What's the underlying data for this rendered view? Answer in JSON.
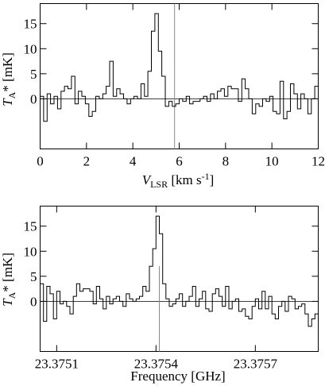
{
  "chart_data": [
    {
      "type": "line",
      "step": true,
      "xlabel_main": "V",
      "xlabel_sub": "LSR",
      "xlabel_unit": " [km s",
      "xlabel_exp": "-1",
      "xlabel_close": "]",
      "ylabel_main": "T",
      "ylabel_sub": "A",
      "ylabel_rest": "* [mK]",
      "xlim": [
        0,
        12
      ],
      "ylim": [
        -10,
        19
      ],
      "xticks": [
        0,
        2,
        4,
        6,
        8,
        10,
        12
      ],
      "yticks": [
        0,
        5,
        10,
        15
      ],
      "vline": 5.8,
      "x": [
        0.0,
        0.15,
        0.3,
        0.45,
        0.6,
        0.75,
        0.9,
        1.05,
        1.2,
        1.35,
        1.5,
        1.65,
        1.8,
        1.95,
        2.1,
        2.25,
        2.4,
        2.55,
        2.7,
        2.85,
        3.0,
        3.15,
        3.3,
        3.45,
        3.6,
        3.75,
        3.9,
        4.05,
        4.2,
        4.35,
        4.5,
        4.65,
        4.8,
        4.95,
        5.1,
        5.25,
        5.4,
        5.55,
        5.7,
        5.85,
        6.0,
        6.15,
        6.3,
        6.45,
        6.6,
        6.75,
        6.9,
        7.05,
        7.2,
        7.35,
        7.5,
        7.65,
        7.8,
        7.95,
        8.1,
        8.25,
        8.4,
        8.55,
        8.7,
        8.85,
        9.0,
        9.15,
        9.3,
        9.45,
        9.6,
        9.75,
        9.9,
        10.05,
        10.2,
        10.35,
        10.5,
        10.65,
        10.8,
        10.95,
        11.1,
        11.25,
        11.4,
        11.55,
        11.7,
        11.85
      ],
      "values": [
        0.5,
        -4.5,
        1.0,
        -1.0,
        0.5,
        -2.0,
        1.5,
        2.5,
        2.0,
        4.5,
        -1.0,
        1.5,
        0.5,
        -1.0,
        -3.5,
        -2.5,
        0.5,
        0.0,
        1.0,
        2.5,
        7.5,
        0.5,
        2.0,
        1.0,
        0.0,
        -1.0,
        0.0,
        0.5,
        0.0,
        3.0,
        0.5,
        5.5,
        13.5,
        17.0,
        9.5,
        4.5,
        -1.5,
        -0.5,
        -1.5,
        -1.0,
        0.0,
        -0.5,
        0.5,
        -1.0,
        -0.5,
        -0.5,
        0.0,
        0.5,
        -0.5,
        1.0,
        0.0,
        1.5,
        2.0,
        0.5,
        2.5,
        2.0,
        2.0,
        -0.5,
        4.0,
        2.0,
        0.0,
        -3.0,
        -1.0,
        -1.5,
        0.0,
        -0.5,
        0.5,
        -2.5,
        -3.0,
        3.5,
        -4.0,
        -2.5,
        3.0,
        1.0,
        -2.0,
        1.0,
        0.0,
        -3.0,
        0.0,
        2.5
      ]
    },
    {
      "type": "line",
      "step": true,
      "xlabel": "Frequency [GHz]",
      "ylabel_main": "T",
      "ylabel_sub": "A",
      "ylabel_rest": "* [mK]",
      "xlim": [
        23.37505,
        23.37589
      ],
      "ylim": [
        -10,
        19
      ],
      "xticks": [
        23.3751,
        23.3754,
        23.3757
      ],
      "xtick_labels": [
        "23.3751",
        "23.3754",
        "23.3757"
      ],
      "yticks": [
        0,
        5,
        10,
        15
      ],
      "vline": 23.37541,
      "vline_top": 7,
      "x": [
        23.37505,
        23.37506,
        23.37507,
        23.37508,
        23.37509,
        23.3751,
        23.37511,
        23.37512,
        23.37513,
        23.37514,
        23.37515,
        23.37516,
        23.37517,
        23.37518,
        23.37519,
        23.3752,
        23.37521,
        23.37522,
        23.37523,
        23.37524,
        23.37525,
        23.37526,
        23.37527,
        23.37528,
        23.37529,
        23.3753,
        23.37531,
        23.37532,
        23.37533,
        23.37534,
        23.37535,
        23.37536,
        23.37537,
        23.37538,
        23.37539,
        23.3754,
        23.37541,
        23.37542,
        23.37543,
        23.37544,
        23.37545,
        23.37546,
        23.37547,
        23.37548,
        23.37549,
        23.3755,
        23.37551,
        23.37552,
        23.37553,
        23.37554,
        23.37555,
        23.37556,
        23.37557,
        23.37558,
        23.37559,
        23.3756,
        23.37561,
        23.37562,
        23.37563,
        23.37564,
        23.37565,
        23.37566,
        23.37567,
        23.37568,
        23.37569,
        23.3757,
        23.37571,
        23.37572,
        23.37573,
        23.37574,
        23.37575,
        23.37576,
        23.37577,
        23.37578,
        23.37579,
        23.3758,
        23.37581,
        23.37582,
        23.37583,
        23.37584,
        23.37585,
        23.37586,
        23.37587,
        23.37588
      ],
      "values": [
        3.5,
        -4.0,
        3.0,
        1.5,
        -3.5,
        2.0,
        -0.5,
        0.0,
        -1.0,
        -2.5,
        1.0,
        3.5,
        2.0,
        2.5,
        2.5,
        2.0,
        -0.5,
        3.0,
        0.5,
        -1.5,
        1.0,
        -0.5,
        0.5,
        1.0,
        0.0,
        -1.0,
        1.5,
        0.5,
        0.0,
        0.5,
        1.0,
        3.0,
        2.0,
        7.0,
        10.5,
        17.0,
        13.5,
        3.5,
        0.5,
        -1.0,
        -0.5,
        0.5,
        1.5,
        -1.0,
        0.0,
        1.0,
        3.0,
        -1.0,
        0.5,
        2.0,
        -1.5,
        -2.0,
        1.5,
        2.5,
        1.0,
        -1.0,
        3.0,
        -1.5,
        0.0,
        0.5,
        -2.0,
        -1.5,
        -3.0,
        -3.5,
        -1.0,
        0.5,
        -1.5,
        2.0,
        -1.5,
        1.0,
        -2.5,
        -3.5,
        -1.0,
        0.0,
        -2.0,
        1.0,
        0.5,
        -1.5,
        -1.0,
        -0.5,
        -2.5,
        -5.0,
        -3.5,
        -2.5
      ]
    }
  ]
}
